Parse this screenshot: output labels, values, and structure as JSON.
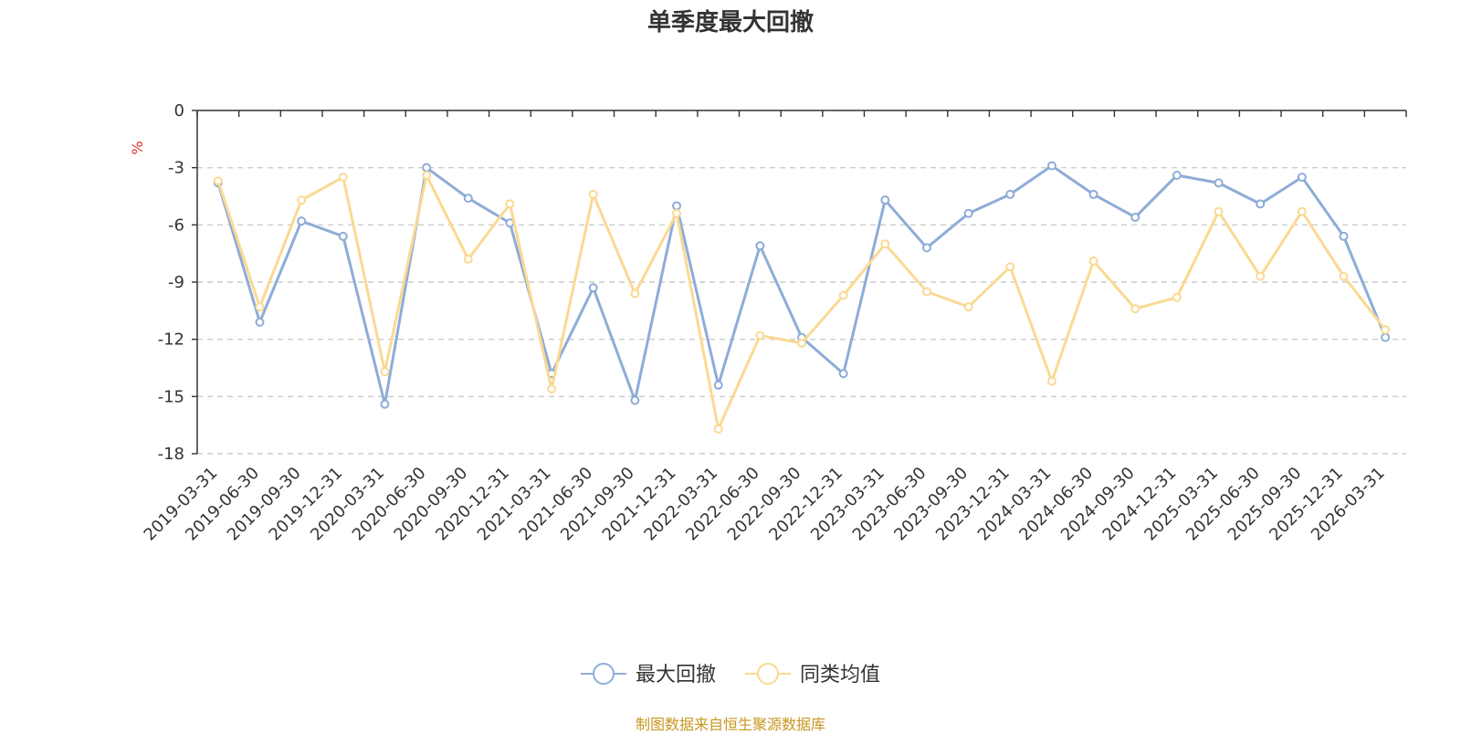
{
  "chart_data": {
    "type": "line",
    "title": "单季度最大回撤",
    "ylabel": "%",
    "ylim": [
      -18,
      0
    ],
    "yticks": [
      "0",
      "-3",
      "-6",
      "-9",
      "-12",
      "-15",
      "-18"
    ],
    "grid": true,
    "legend_position": "bottom-center",
    "categories": [
      "2019-03-31",
      "2019-06-30",
      "2019-09-30",
      "2019-12-31",
      "2020-03-31",
      "2020-06-30",
      "2020-09-30",
      "2020-12-31",
      "2021-03-31",
      "2021-06-30",
      "2021-09-30",
      "2021-12-31",
      "2022-03-31",
      "2022-06-30",
      "2022-09-30",
      "2022-12-31",
      "2023-03-31",
      "2023-06-30",
      "2023-09-30",
      "2023-12-31",
      "2024-03-31",
      "2024-06-30",
      "2024-09-30",
      "2024-12-31",
      "2025-03-31",
      "2025-06-30",
      "2025-09-30",
      "2025-12-31",
      "2026-03-31"
    ],
    "series": [
      {
        "name": "最大回撤",
        "color": "#8eacd8",
        "values": [
          -3.8,
          -11.1,
          -5.8,
          -6.6,
          -15.4,
          -3.0,
          -4.6,
          -5.9,
          -13.8,
          -9.3,
          -15.2,
          -5.0,
          -14.4,
          -7.1,
          -11.9,
          -13.8,
          -4.7,
          -7.2,
          -5.4,
          -4.4,
          -2.9,
          -4.4,
          -5.6,
          -3.4,
          -3.8,
          -4.9,
          -3.5,
          -6.6,
          -11.9
        ]
      },
      {
        "name": "同类均值",
        "color": "#fbd993",
        "values": [
          -3.7,
          -10.3,
          -4.7,
          -3.5,
          -13.7,
          -3.4,
          -7.8,
          -4.9,
          -14.6,
          -4.4,
          -9.6,
          -5.4,
          -16.7,
          -11.8,
          -12.2,
          -9.7,
          -7.0,
          -9.5,
          -10.3,
          -8.2,
          -14.2,
          -7.9,
          -10.4,
          -9.8,
          -5.3,
          -8.7,
          -5.3,
          -8.7,
          -11.5
        ]
      }
    ]
  },
  "footer": {
    "source_text": "制图数据来自恒生聚源数据库",
    "color": "#c8961e"
  },
  "colors": {
    "axis": "#333333",
    "grid": "#cccccc",
    "ylabel": "#e03030"
  }
}
